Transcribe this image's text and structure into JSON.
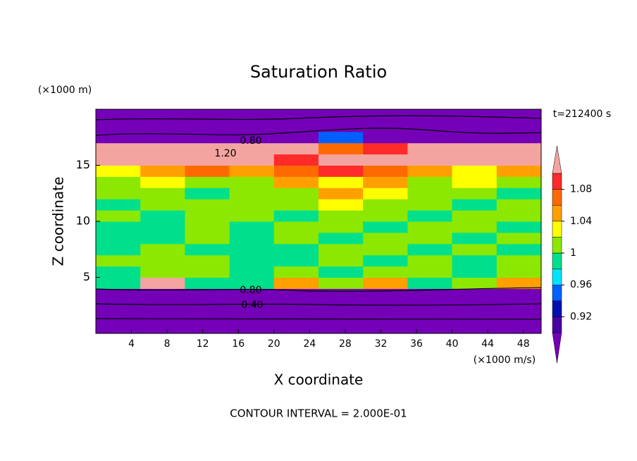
{
  "chart_data": {
    "type": "contour",
    "title": "Saturation Ratio",
    "y_unit": "(×1000 m)",
    "x_unit": "(×1000 m/s)",
    "time_label": "t=212400 s",
    "xlabel": "X coordinate",
    "ylabel": "Z coordinate",
    "footer": "CONTOUR INTERVAL = 2.000E-01",
    "contour_labels": [
      "0.80",
      "1.20",
      "0.80",
      "0.40"
    ],
    "x": [
      2.5,
      7.5,
      12.5,
      17.5,
      22.5,
      27.5,
      32.5,
      37.5,
      42.5,
      47.5
    ],
    "z": [
      0.5,
      1.5,
      2.5,
      3.5,
      4.5,
      5.5,
      6.5,
      7.5,
      8.5,
      9.5,
      10.5,
      11.5,
      12.5,
      13.5,
      14.5,
      15.5,
      16.5,
      17.5,
      18.5,
      19.5
    ],
    "values": [
      [
        0.3,
        0.3,
        0.3,
        0.3,
        0.3,
        0.3,
        0.3,
        0.3,
        0.3,
        0.3
      ],
      [
        0.35,
        0.35,
        0.35,
        0.35,
        0.35,
        0.35,
        0.35,
        0.35,
        0.35,
        0.35
      ],
      [
        0.4,
        0.4,
        0.4,
        0.4,
        0.4,
        0.4,
        0.4,
        0.4,
        0.4,
        0.4
      ],
      [
        0.55,
        0.55,
        0.55,
        0.55,
        0.55,
        0.55,
        0.55,
        0.55,
        0.55,
        0.55
      ],
      [
        0.99,
        1.15,
        0.99,
        0.99,
        1.05,
        1.01,
        1.05,
        0.99,
        1.01,
        1.05
      ],
      [
        0.99,
        1.01,
        1.01,
        0.99,
        1.01,
        0.99,
        1.01,
        1.01,
        0.99,
        1.01
      ],
      [
        1.01,
        1.01,
        1.01,
        0.99,
        0.99,
        1.01,
        0.99,
        1.01,
        0.99,
        1.01
      ],
      [
        0.99,
        1.01,
        0.99,
        0.99,
        0.99,
        1.01,
        1.01,
        0.99,
        1.01,
        0.99
      ],
      [
        0.99,
        0.99,
        1.01,
        0.99,
        1.01,
        0.99,
        1.01,
        1.01,
        0.99,
        1.01
      ],
      [
        0.99,
        0.99,
        1.01,
        0.99,
        1.01,
        1.01,
        0.99,
        1.01,
        1.01,
        0.99
      ],
      [
        1.01,
        0.99,
        1.01,
        1.01,
        0.99,
        1.01,
        1.01,
        0.99,
        1.01,
        1.01
      ],
      [
        0.99,
        1.01,
        1.01,
        1.01,
        1.01,
        1.03,
        1.01,
        1.01,
        0.99,
        1.01
      ],
      [
        1.01,
        1.01,
        0.99,
        1.01,
        1.01,
        1.05,
        1.03,
        1.01,
        1.01,
        0.99
      ],
      [
        1.01,
        1.03,
        1.01,
        1.01,
        1.05,
        1.03,
        1.05,
        1.01,
        1.03,
        1.01
      ],
      [
        1.03,
        1.05,
        1.07,
        1.05,
        1.07,
        1.09,
        1.07,
        1.05,
        1.03,
        1.05
      ],
      [
        1.15,
        1.15,
        1.15,
        1.15,
        1.09,
        1.15,
        1.15,
        1.15,
        1.15,
        1.15
      ],
      [
        1.15,
        1.15,
        1.15,
        1.15,
        1.15,
        1.07,
        1.09,
        1.15,
        1.15,
        1.15
      ],
      [
        0.85,
        0.85,
        0.85,
        0.85,
        0.85,
        0.95,
        0.85,
        0.85,
        0.85,
        0.85
      ],
      [
        0.75,
        0.75,
        0.75,
        0.75,
        0.75,
        0.75,
        0.75,
        0.75,
        0.75,
        0.75
      ],
      [
        0.6,
        0.6,
        0.6,
        0.6,
        0.6,
        0.6,
        0.6,
        0.6,
        0.6,
        0.6
      ]
    ],
    "levels": [
      0.9,
      0.92,
      0.94,
      0.96,
      0.98,
      1,
      1.02,
      1.04,
      1.06,
      1.08,
      1.1
    ],
    "colors": [
      "#7400b8",
      "#4a00a0",
      "#0010b0",
      "#0060ff",
      "#00e4ff",
      "#00e08c",
      "#8ce800",
      "#ffff00",
      "#ffa000",
      "#ff6a00",
      "#ff2a2a",
      "#f4a4a0"
    ],
    "cbticks": [
      0.92,
      0.96,
      1,
      1.04,
      1.08
    ],
    "xlim": [
      0,
      50
    ],
    "xticks": [
      4,
      8,
      12,
      16,
      20,
      24,
      28,
      32,
      36,
      40,
      44,
      48
    ],
    "ylim": [
      0,
      20
    ],
    "yticks": [
      5,
      10,
      15
    ]
  }
}
